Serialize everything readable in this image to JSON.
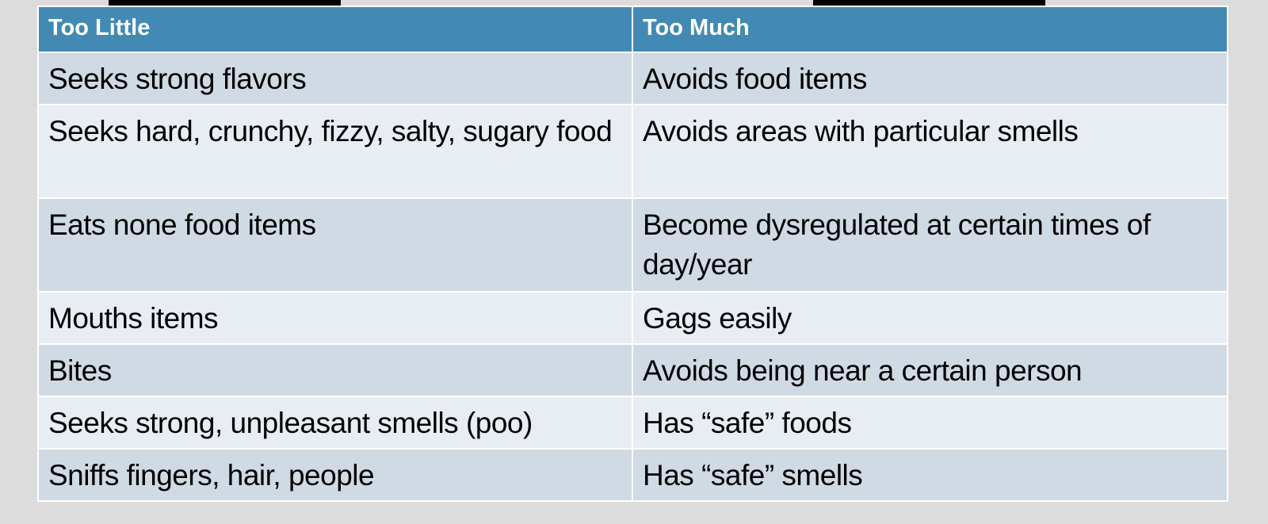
{
  "table": {
    "headers": [
      "Too Little",
      "Too Much"
    ],
    "rows": [
      [
        "Seeks strong flavors",
        "Avoids food items"
      ],
      [
        "Seeks hard, crunchy, fizzy, salty, sugary food",
        "Avoids areas with particular smells"
      ],
      [
        "Eats none food items",
        "Become dysregulated at certain times of day/year"
      ],
      [
        "Mouths items",
        "Gags easily"
      ],
      [
        "Bites",
        "Avoids being near a certain person"
      ],
      [
        "Seeks strong, unpleasant smells (poo)",
        "Has “safe” foods"
      ],
      [
        "Sniffs fingers, hair, people",
        "Has “safe” smells"
      ]
    ]
  },
  "colors": {
    "header_bg": "#428ab4",
    "row_odd_bg": "#d0dae4",
    "row_even_bg": "#e8edf3",
    "page_bg": "#dcdcdc"
  }
}
